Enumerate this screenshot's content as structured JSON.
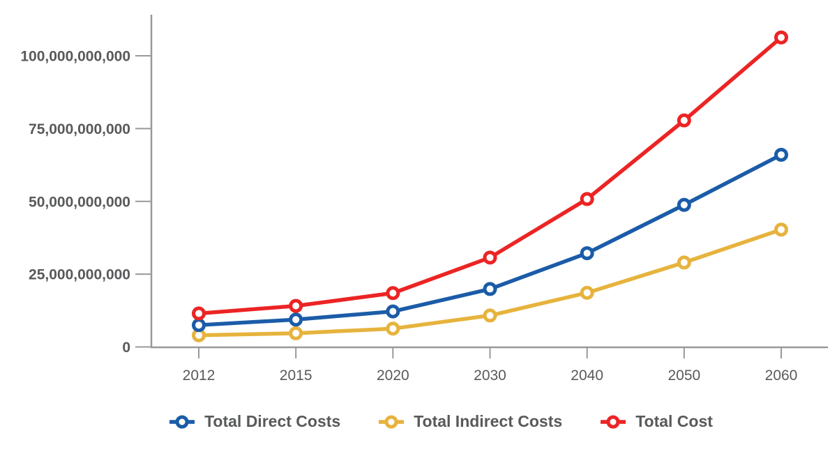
{
  "chart_data": {
    "type": "line",
    "title": "",
    "xlabel": "",
    "ylabel": "",
    "categories": [
      "2012",
      "2015",
      "2020",
      "2030",
      "2040",
      "2050",
      "2060"
    ],
    "series": [
      {
        "name": "Total Direct Costs",
        "color": "#1b5ca8",
        "values": [
          7500000000,
          9400000000,
          12200000000,
          19900000000,
          32200000000,
          48800000000,
          66000000000
        ]
      },
      {
        "name": "Total Indirect Costs",
        "color": "#e6b33d",
        "values": [
          4000000000,
          4700000000,
          6300000000,
          10800000000,
          18600000000,
          29000000000,
          40300000000
        ]
      },
      {
        "name": "Total Cost",
        "color": "#ec2424",
        "values": [
          11500000000,
          14100000000,
          18500000000,
          30700000000,
          50800000000,
          77800000000,
          106300000000
        ]
      }
    ],
    "ylim": [
      0,
      110000000000
    ],
    "yticks": [
      0,
      25000000000,
      50000000000,
      75000000000,
      100000000000
    ],
    "ytick_labels": [
      "0",
      "25,000,000,000",
      "50,000,000,000",
      "75,000,000,000",
      "100,000,000,000"
    ],
    "grid": false,
    "legend_position": "bottom",
    "marker": "open-circle"
  },
  "colors": {
    "axis": "#97999c",
    "label_text": "#58595b",
    "background": "#ffffff",
    "marker_fill": "#ffffff"
  }
}
